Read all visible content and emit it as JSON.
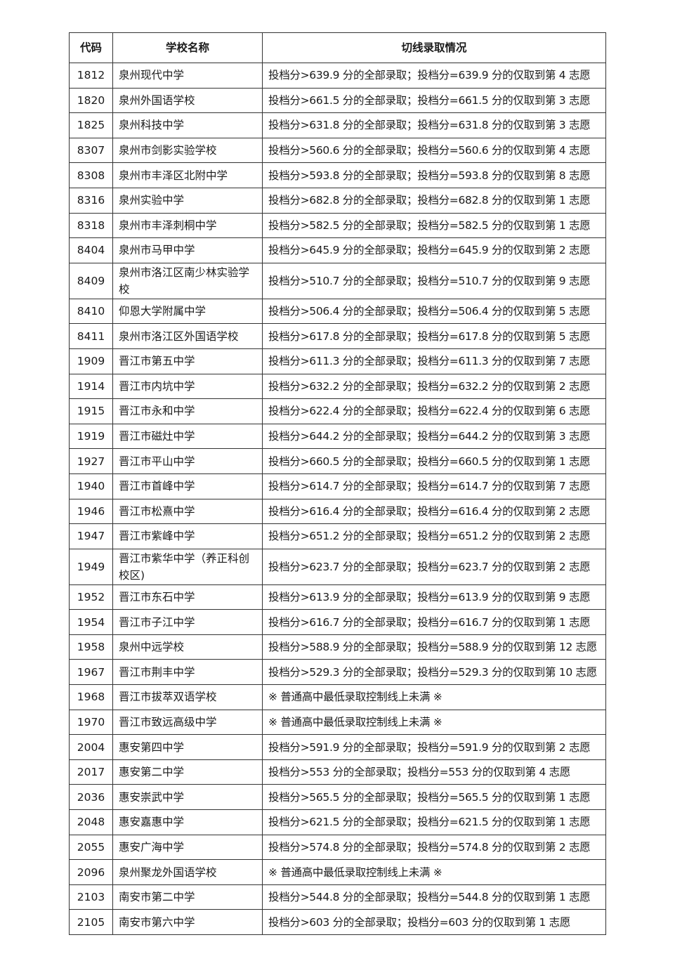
{
  "table": {
    "headers": [
      "代码",
      "学校名称",
      "切线录取情况"
    ],
    "rows": [
      {
        "code": "1812",
        "name": "泉州现代中学",
        "info": "投档分>639.9 分的全部录取；投档分=639.9 分的仅取到第 4 志愿"
      },
      {
        "code": "1820",
        "name": "泉州外国语学校",
        "info": "投档分>661.5 分的全部录取；投档分=661.5 分的仅取到第 3 志愿"
      },
      {
        "code": "1825",
        "name": "泉州科技中学",
        "info": "投档分>631.8 分的全部录取；投档分=631.8 分的仅取到第 3 志愿"
      },
      {
        "code": "8307",
        "name": "泉州市剑影实验学校",
        "info": "投档分>560.6 分的全部录取；投档分=560.6 分的仅取到第 4 志愿"
      },
      {
        "code": "8308",
        "name": "泉州市丰泽区北附中学",
        "info": "投档分>593.8 分的全部录取；投档分=593.8 分的仅取到第 8 志愿"
      },
      {
        "code": "8316",
        "name": "泉州实验中学",
        "info": "投档分>682.8 分的全部录取；投档分=682.8 分的仅取到第 1 志愿"
      },
      {
        "code": "8318",
        "name": "泉州市丰泽刺桐中学",
        "info": "投档分>582.5 分的全部录取；投档分=582.5 分的仅取到第 1 志愿"
      },
      {
        "code": "8404",
        "name": "泉州市马甲中学",
        "info": "投档分>645.9 分的全部录取；投档分=645.9 分的仅取到第 2 志愿"
      },
      {
        "code": "8409",
        "name": "泉州市洛江区南少林实验学校",
        "info": "投档分>510.7 分的全部录取；投档分=510.7 分的仅取到第 9 志愿"
      },
      {
        "code": "8410",
        "name": "仰恩大学附属中学",
        "info": "投档分>506.4 分的全部录取；投档分=506.4 分的仅取到第 5 志愿"
      },
      {
        "code": "8411",
        "name": "泉州市洛江区外国语学校",
        "info": "投档分>617.8 分的全部录取；投档分=617.8 分的仅取到第 5 志愿"
      },
      {
        "code": "1909",
        "name": "晋江市第五中学",
        "info": "投档分>611.3 分的全部录取；投档分=611.3 分的仅取到第 7 志愿"
      },
      {
        "code": "1914",
        "name": "晋江市内坑中学",
        "info": "投档分>632.2 分的全部录取；投档分=632.2 分的仅取到第 2 志愿"
      },
      {
        "code": "1915",
        "name": "晋江市永和中学",
        "info": "投档分>622.4 分的全部录取；投档分=622.4 分的仅取到第 6 志愿"
      },
      {
        "code": "1919",
        "name": "晋江市磁灶中学",
        "info": "投档分>644.2 分的全部录取；投档分=644.2 分的仅取到第 3 志愿"
      },
      {
        "code": "1927",
        "name": "晋江市平山中学",
        "info": "投档分>660.5 分的全部录取；投档分=660.5 分的仅取到第 1 志愿"
      },
      {
        "code": "1940",
        "name": "晋江市首峰中学",
        "info": "投档分>614.7 分的全部录取；投档分=614.7 分的仅取到第 7 志愿"
      },
      {
        "code": "1946",
        "name": "晋江市松熹中学",
        "info": "投档分>616.4 分的全部录取；投档分=616.4 分的仅取到第 2 志愿"
      },
      {
        "code": "1947",
        "name": "晋江市紫峰中学",
        "info": "投档分>651.2 分的全部录取；投档分=651.2 分的仅取到第 2 志愿"
      },
      {
        "code": "1949",
        "name": "晋江市紫华中学（养正科创校区)",
        "info": "投档分>623.7 分的全部录取；投档分=623.7 分的仅取到第 2 志愿"
      },
      {
        "code": "1952",
        "name": "晋江市东石中学",
        "info": "投档分>613.9 分的全部录取；投档分=613.9 分的仅取到第 9 志愿"
      },
      {
        "code": "1954",
        "name": "晋江市子江中学",
        "info": "投档分>616.7 分的全部录取；投档分=616.7 分的仅取到第 1 志愿"
      },
      {
        "code": "1958",
        "name": "泉州中远学校",
        "info": "投档分>588.9 分的全部录取；投档分=588.9 分的仅取到第 12 志愿"
      },
      {
        "code": "1967",
        "name": "晋江市荆丰中学",
        "info": "投档分>529.3 分的全部录取；投档分=529.3 分的仅取到第 10 志愿"
      },
      {
        "code": "1968",
        "name": "晋江市拔萃双语学校",
        "info": "※  普通高中最低录取控制线上未满  ※"
      },
      {
        "code": "1970",
        "name": "晋江市致远高级中学",
        "info": "※  普通高中最低录取控制线上未满  ※"
      },
      {
        "code": "2004",
        "name": "惠安第四中学",
        "info": "投档分>591.9 分的全部录取；投档分=591.9 分的仅取到第 2 志愿"
      },
      {
        "code": "2017",
        "name": "惠安第二中学",
        "info": "投档分>553 分的全部录取；投档分=553 分的仅取到第 4 志愿"
      },
      {
        "code": "2036",
        "name": "惠安崇武中学",
        "info": "投档分>565.5 分的全部录取；投档分=565.5 分的仅取到第 1 志愿"
      },
      {
        "code": "2048",
        "name": "惠安嘉惠中学",
        "info": "投档分>621.5 分的全部录取；投档分=621.5 分的仅取到第 1 志愿"
      },
      {
        "code": "2055",
        "name": "惠安广海中学",
        "info": "投档分>574.8 分的全部录取；投档分=574.8 分的仅取到第 2 志愿"
      },
      {
        "code": "2096",
        "name": "泉州聚龙外国语学校",
        "info": "※  普通高中最低录取控制线上未满  ※"
      },
      {
        "code": "2103",
        "name": "南安市第二中学",
        "info": "投档分>544.8 分的全部录取；投档分=544.8 分的仅取到第 1 志愿"
      },
      {
        "code": "2105",
        "name": "南安市第六中学",
        "info": "投档分>603 分的全部录取；投档分=603 分的仅取到第 1 志愿"
      }
    ]
  }
}
